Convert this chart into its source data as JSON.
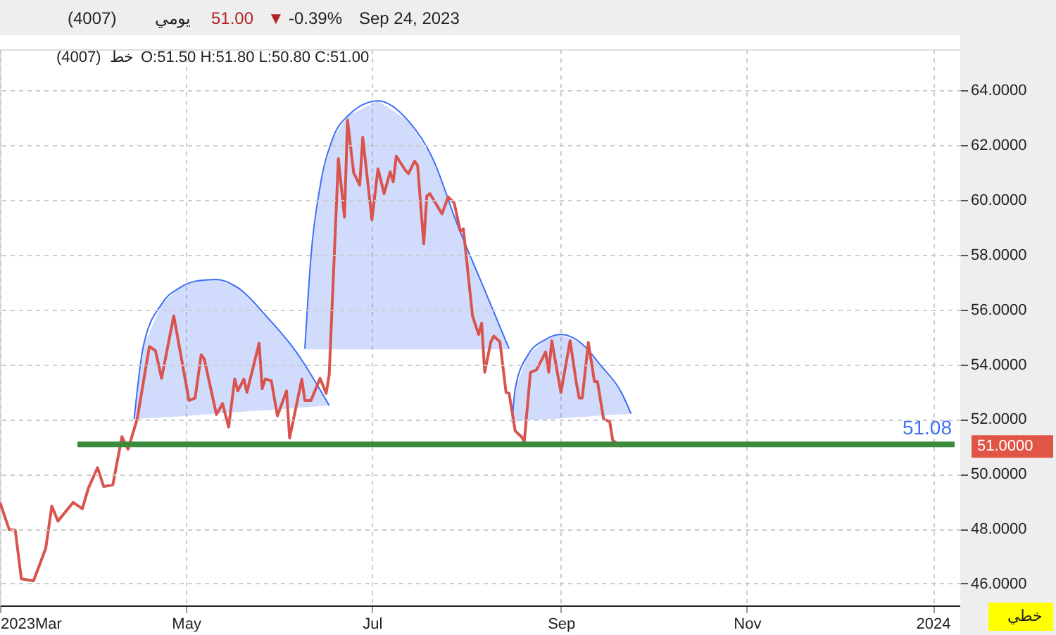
{
  "chart_data": {
    "type": "line",
    "annotations": [
      "(4007)",
      "يومي",
      "51.00",
      "▼",
      "-0.39%",
      "Sep 24, 2023",
      "(4007)",
      "خط",
      "O:51.50  H:51.80  L:50.80  C:51.00",
      "51.0000",
      "خطي"
    ],
    "series": [
      {
        "color": "#3d6ef5",
        "x": [
          "2023-04-14",
          "2023-04-17",
          "2023-04-23",
          "2023-04-29",
          "2023-05-05",
          "2023-05-11",
          "2023-05-18",
          "2023-05-28",
          "2023-06-06",
          "2023-06-17"
        ],
        "values": [
          52.0,
          54.65,
          56.2,
          56.8,
          57.05,
          57.1,
          56.8,
          55.68,
          54.48,
          52.5
        ],
        "upper": [
          52.0,
          54.65,
          56.2,
          56.8,
          57.05,
          57.1,
          56.8,
          55.68,
          54.48,
          52.5
        ],
        "lower": [
          52.0,
          52.02,
          52.06,
          52.1,
          52.15,
          52.2,
          52.26,
          52.33,
          52.41,
          52.5
        ]
      },
      {
        "color": "#3d6ef5",
        "x": [
          "2023-06-09",
          "2023-06-11",
          "2023-06-14",
          "2023-06-18",
          "2023-06-23",
          "2023-07-03",
          "2023-07-13",
          "2023-07-21",
          "2023-07-29",
          "2023-08-07",
          "2023-08-15"
        ],
        "values": [
          54.57,
          57.93,
          60.49,
          62.2,
          63.06,
          63.62,
          62.88,
          61.5,
          59.11,
          56.71,
          54.57
        ],
        "upper": [
          54.57,
          57.93,
          60.49,
          62.2,
          63.06,
          63.62,
          62.88,
          61.5,
          59.11,
          56.71,
          54.57
        ],
        "lower": [
          54.55,
          54.55,
          54.55,
          54.55,
          54.55,
          54.55,
          54.55,
          54.55,
          54.55,
          54.55,
          54.55
        ]
      },
      {
        "color": "#3d6ef5",
        "x": [
          "2023-08-16",
          "2023-08-17",
          "2023-08-21",
          "2023-08-27",
          "2023-09-01",
          "2023-09-08",
          "2023-09-14",
          "2023-09-21",
          "2023-09-24"
        ],
        "values": [
          51.9,
          53.11,
          54.31,
          54.91,
          55.09,
          54.74,
          53.97,
          52.94,
          52.2
        ],
        "upper": [
          51.9,
          53.11,
          54.31,
          54.91,
          55.09,
          54.74,
          53.97,
          52.94,
          52.2
        ],
        "lower": [
          51.9,
          51.91,
          51.95,
          51.99,
          52.03,
          52.08,
          52.13,
          52.17,
          52.2
        ]
      },
      {
        "color": "#d9534f",
        "x": [
          "2023-03-01",
          "2023-03-04",
          "2023-03-06",
          "2023-03-08",
          "2023-03-12",
          "2023-03-16",
          "2023-03-18",
          "2023-03-20",
          "2023-03-25",
          "2023-03-28",
          "2023-03-30",
          "2023-04-02",
          "2023-04-04",
          "2023-04-07",
          "2023-04-10",
          "2023-04-12",
          "2023-04-15",
          "2023-04-19",
          "2023-04-21",
          "2023-04-23",
          "2023-04-27",
          "2023-05-02",
          "2023-05-04",
          "2023-05-06",
          "2023-05-07",
          "2023-05-11",
          "2023-05-13",
          "2023-05-15",
          "2023-05-17",
          "2023-05-18",
          "2023-05-20",
          "2023-05-21",
          "2023-05-25",
          "2023-05-26",
          "2023-05-27",
          "2023-05-29",
          "2023-05-31",
          "2023-06-03",
          "2023-06-04",
          "2023-06-08",
          "2023-06-09",
          "2023-06-11",
          "2023-06-14",
          "2023-06-16",
          "2023-06-17",
          "2023-06-20",
          "2023-06-22",
          "2023-06-23",
          "2023-06-25",
          "2023-06-27",
          "2023-06-28",
          "2023-07-01",
          "2023-07-03",
          "2023-07-05",
          "2023-07-07",
          "2023-07-08",
          "2023-07-09",
          "2023-07-12",
          "2023-07-13",
          "2023-07-15",
          "2023-07-16",
          "2023-07-18",
          "2023-07-19",
          "2023-07-20",
          "2023-07-24",
          "2023-07-26",
          "2023-07-28",
          "2023-07-30",
          "2023-07-31",
          "2023-08-03",
          "2023-08-05",
          "2023-08-06",
          "2023-08-07",
          "2023-08-09",
          "2023-08-10",
          "2023-08-12",
          "2023-08-14",
          "2023-08-15",
          "2023-08-17",
          "2023-08-19",
          "2023-08-20",
          "2023-08-22",
          "2023-08-24",
          "2023-08-27",
          "2023-08-28",
          "2023-08-29",
          "2023-09-01",
          "2023-09-04",
          "2023-09-06",
          "2023-09-07",
          "2023-09-08",
          "2023-09-10",
          "2023-09-12",
          "2023-09-13",
          "2023-09-15",
          "2023-09-17",
          "2023-09-18",
          "2023-09-21"
        ],
        "values": [
          48.96,
          47.97,
          47.95,
          46.17,
          46.1,
          47.28,
          48.83,
          48.28,
          48.96,
          48.73,
          49.48,
          50.23,
          49.54,
          49.6,
          51.36,
          50.9,
          52.0,
          54.65,
          54.5,
          53.49,
          55.77,
          52.68,
          52.77,
          54.35,
          54.2,
          52.17,
          52.57,
          51.71,
          53.46,
          53.03,
          53.46,
          52.98,
          54.77,
          53.11,
          53.46,
          53.4,
          52.12,
          53.03,
          51.31,
          53.46,
          52.68,
          52.68,
          53.49,
          52.94,
          53.63,
          61.51,
          59.37,
          62.92,
          61.0,
          60.54,
          62.29,
          59.28,
          61.14,
          60.23,
          61.03,
          60.66,
          61.6,
          61.08,
          60.96,
          61.42,
          61.25,
          58.4,
          60.14,
          60.23,
          59.49,
          60.11,
          59.89,
          58.86,
          58.94,
          55.77,
          55.09,
          55.5,
          53.71,
          54.82,
          55.03,
          54.82,
          52.97,
          52.94,
          51.57,
          51.36,
          51.19,
          53.71,
          53.8,
          54.45,
          53.71,
          54.86,
          52.97,
          54.86,
          53.37,
          52.77,
          52.77,
          54.8,
          53.37,
          53.37,
          52.0,
          51.91,
          51.22,
          51.0
        ]
      }
    ],
    "ref_lines": [
      {
        "axis": "y",
        "value": 51.08,
        "label": "51.08",
        "color": "#3c8a3c"
      }
    ],
    "xlim": [
      "2023-03-01",
      "2024-01-10"
    ],
    "xticks": [
      {
        "value": "2023-03-01",
        "label": "2023Mar"
      },
      {
        "value": "2023-05-01",
        "label": "May"
      },
      {
        "value": "2023-07-01",
        "label": "Jul"
      },
      {
        "value": "2023-09-01",
        "label": "Sep"
      },
      {
        "value": "2023-11-01",
        "label": "Nov"
      },
      {
        "value": "2024-01-01",
        "label": "2024"
      }
    ],
    "ylim": [
      45.2,
      65.5
    ],
    "yticks": [
      {
        "value": 46,
        "label": "46.0000"
      },
      {
        "value": 48,
        "label": "48.0000"
      },
      {
        "value": 50,
        "label": "50.0000"
      },
      {
        "value": 52,
        "label": "52.0000"
      },
      {
        "value": 54,
        "label": "54.0000"
      },
      {
        "value": 56,
        "label": "56.0000"
      },
      {
        "value": 58,
        "label": "58.0000"
      },
      {
        "value": 60,
        "label": "60.0000"
      },
      {
        "value": 62,
        "label": "62.0000"
      },
      {
        "value": 64,
        "label": "64.0000"
      }
    ],
    "grid": true,
    "marker": "none",
    "line_style": "solid"
  }
}
